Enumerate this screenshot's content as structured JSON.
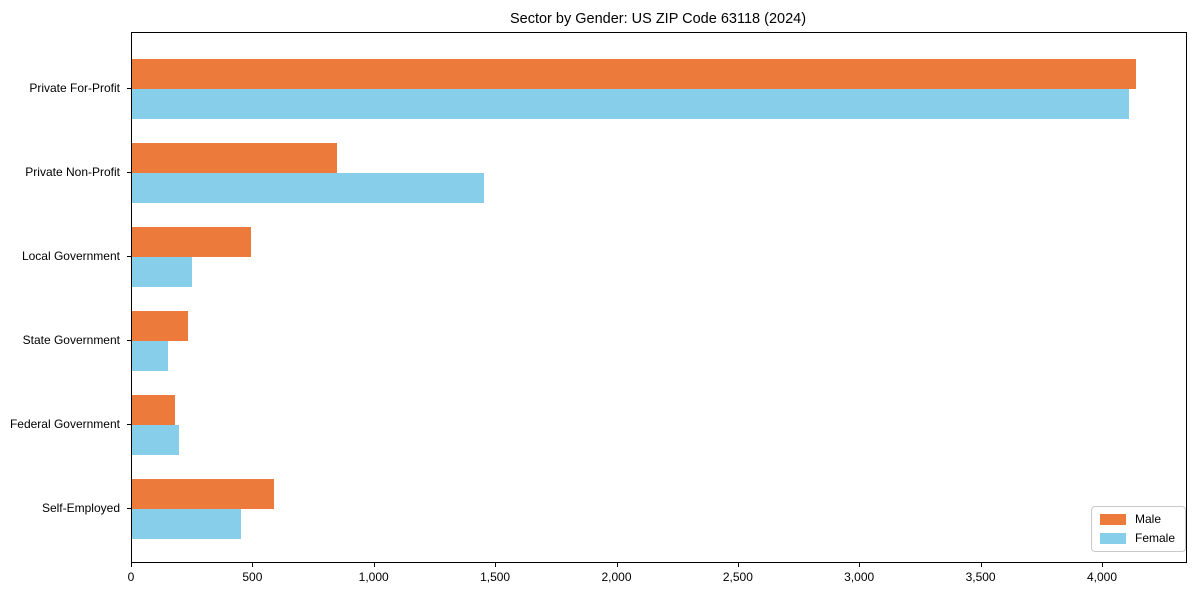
{
  "figure": {
    "title": "Sector by Gender: US ZIP Code 63118 (2024)"
  },
  "chart_data": {
    "type": "bar",
    "orientation": "horizontal",
    "title": "Sector by Gender: US ZIP Code 63118 (2024)",
    "categories": [
      "Private For-Profit",
      "Private Non-Profit",
      "Local Government",
      "State Government",
      "Federal Government",
      "Self-Employed"
    ],
    "series": [
      {
        "name": "Male",
        "color": "#ec7a3a",
        "values": [
          4135,
          845,
          490,
          230,
          178,
          585
        ]
      },
      {
        "name": "Female",
        "color": "#87ceeb",
        "values": [
          4105,
          1450,
          245,
          150,
          195,
          450
        ]
      }
    ],
    "xlabel": "",
    "ylabel": "",
    "xlim": [
      0,
      4342
    ],
    "xticks": {
      "values": [
        0,
        500,
        1000,
        1500,
        2000,
        2500,
        3000,
        3500,
        4000
      ],
      "labels": [
        "0",
        "500",
        "1,000",
        "1,500",
        "2,000",
        "2,500",
        "3,000",
        "3,500",
        "4,000"
      ]
    },
    "grid": false,
    "legend": {
      "position": "lower right"
    }
  }
}
